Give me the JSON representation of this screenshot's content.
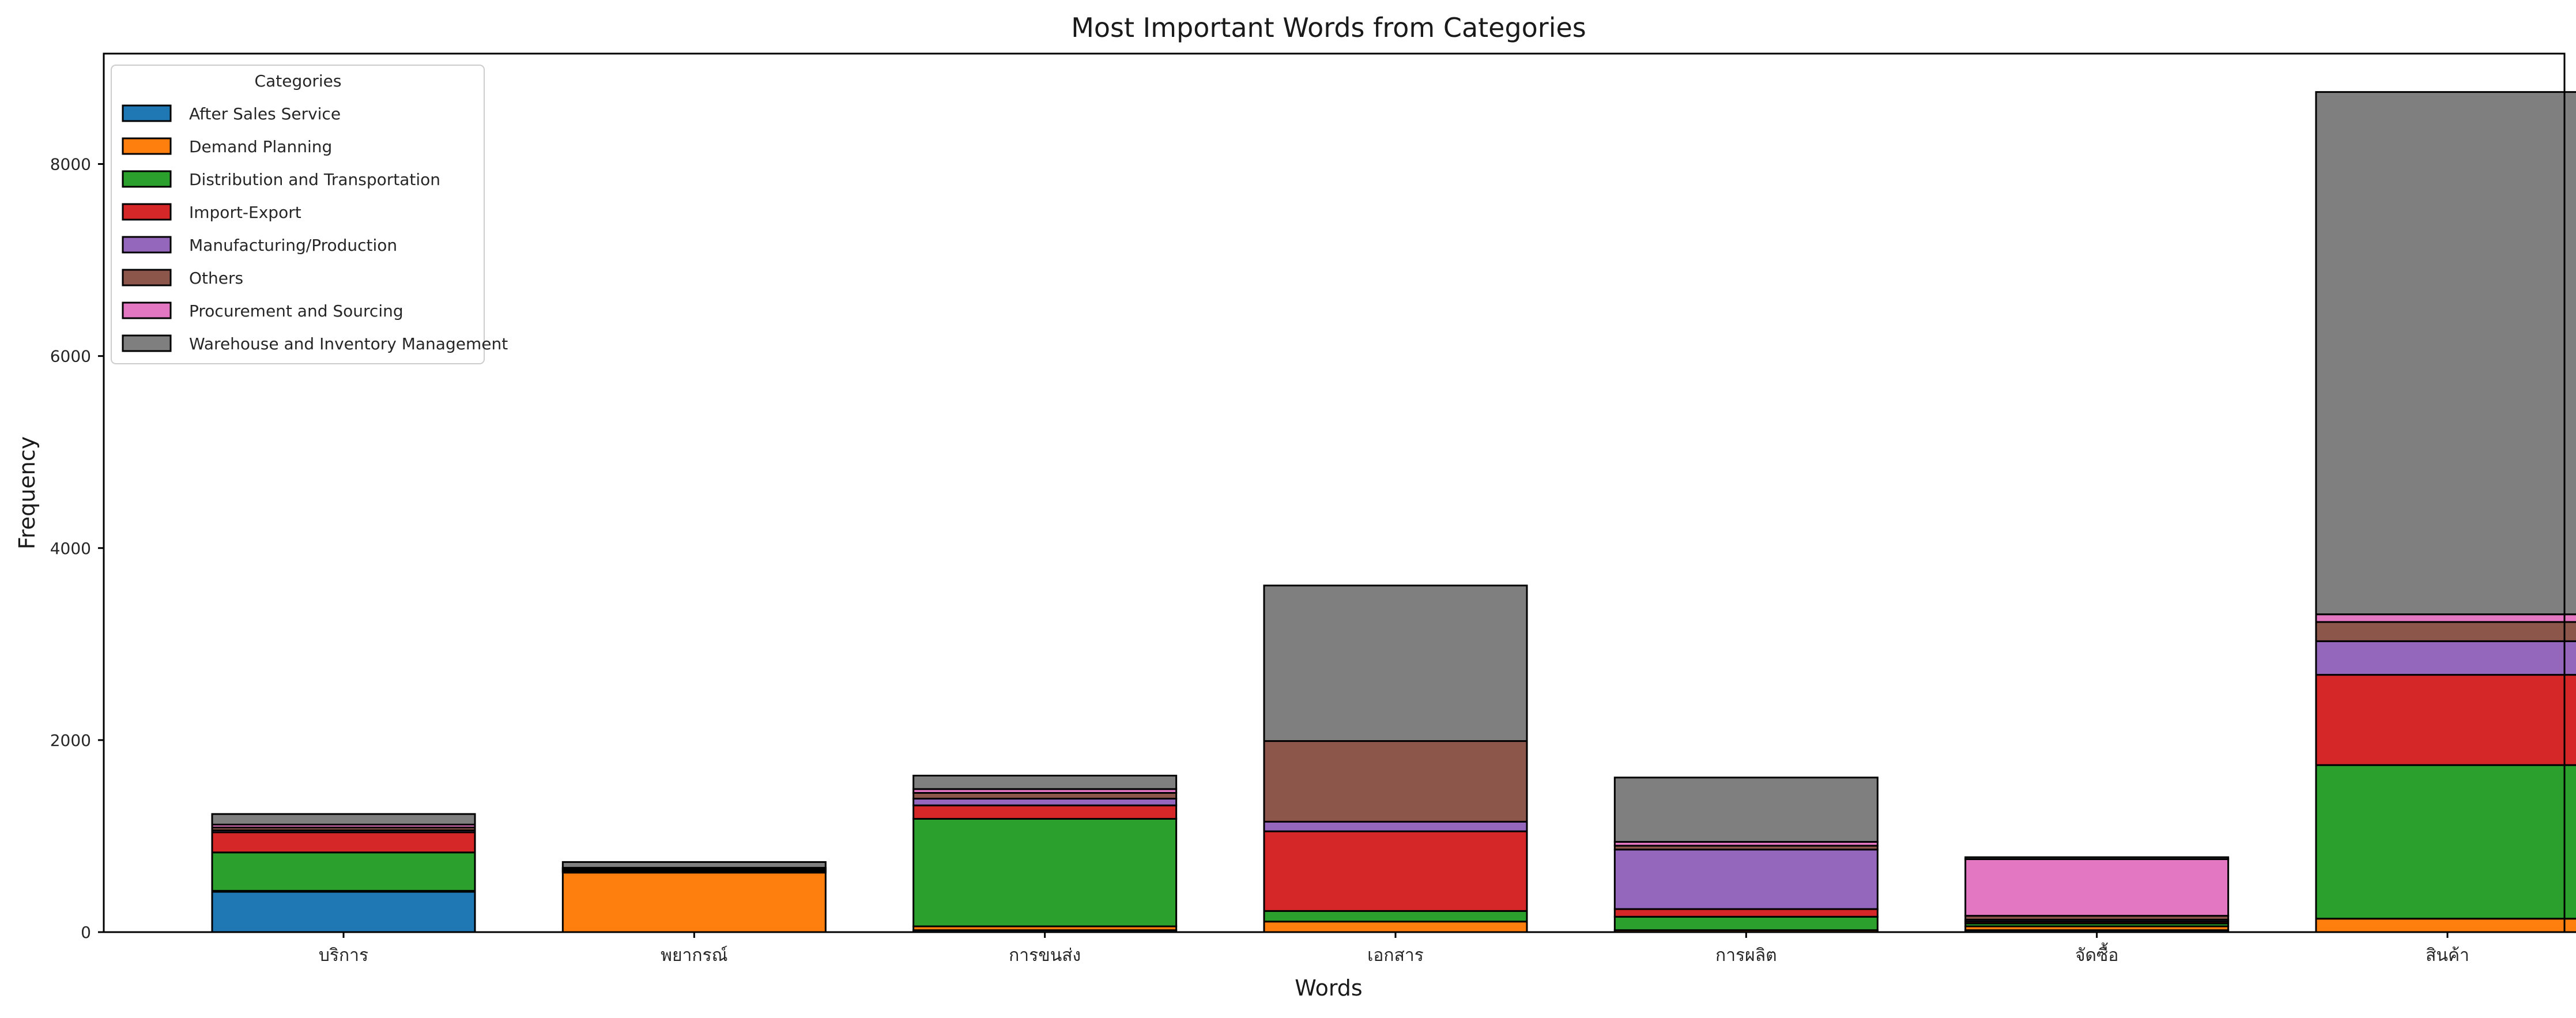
{
  "chart_data": {
    "type": "bar",
    "stacked": true,
    "title": "Most Important Words from Categories",
    "xlabel": "Words",
    "ylabel": "Frequency",
    "ylim": [
      0,
      9150
    ],
    "yticks": [
      0,
      2000,
      4000,
      6000,
      8000
    ],
    "grid": false,
    "legend": {
      "title": "Categories",
      "placement": "top-left"
    },
    "categories": [
      "บริการ",
      "พยากรณ์",
      "การขนส่ง",
      "เอกสาร",
      "การผลิต",
      "จัดซื้อ",
      "สินค้า"
    ],
    "series": [
      {
        "name": "After Sales Service",
        "color": "#1f77b4",
        "values": [
          420,
          0,
          20,
          0,
          0,
          20,
          0
        ]
      },
      {
        "name": "Demand Planning",
        "color": "#ff7f0e",
        "values": [
          10,
          620,
          40,
          110,
          20,
          40,
          140
        ]
      },
      {
        "name": "Distribution and Transportation",
        "color": "#2ca02c",
        "values": [
          400,
          10,
          1120,
          110,
          140,
          30,
          1600
        ]
      },
      {
        "name": "Import-Export",
        "color": "#d62728",
        "values": [
          210,
          10,
          140,
          830,
          80,
          20,
          940
        ]
      },
      {
        "name": "Manufacturing/Production",
        "color": "#9467bd",
        "values": [
          20,
          10,
          70,
          100,
          620,
          20,
          350
        ]
      },
      {
        "name": "Others",
        "color": "#8c564b",
        "values": [
          30,
          10,
          60,
          840,
          40,
          40,
          200
        ]
      },
      {
        "name": "Procurement and Sourcing",
        "color": "#e377c2",
        "values": [
          30,
          10,
          40,
          0,
          40,
          590,
          80
        ]
      },
      {
        "name": "Warehouse and Inventory Management",
        "color": "#7f7f7f",
        "values": [
          110,
          60,
          140,
          1620,
          670,
          20,
          5440
        ]
      }
    ]
  }
}
